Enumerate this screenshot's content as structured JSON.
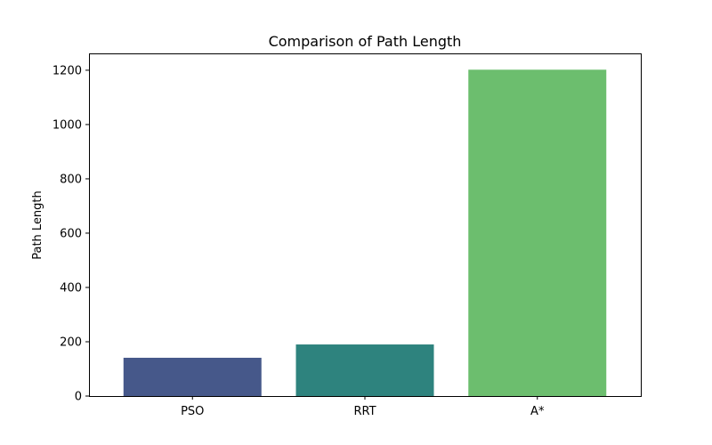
{
  "chart_data": {
    "type": "bar",
    "title": "Comparison of Path Length",
    "xlabel": "",
    "ylabel": "Path Length",
    "categories": [
      "PSO",
      "RRT",
      "A*"
    ],
    "values": [
      141,
      190,
      1202
    ],
    "colors": [
      "#46588A",
      "#2E837E",
      "#6CBE6E"
    ],
    "ylim": [
      0,
      1262
    ],
    "yticks": [
      0,
      200,
      400,
      600,
      800,
      1000,
      1200
    ],
    "grid": false
  }
}
